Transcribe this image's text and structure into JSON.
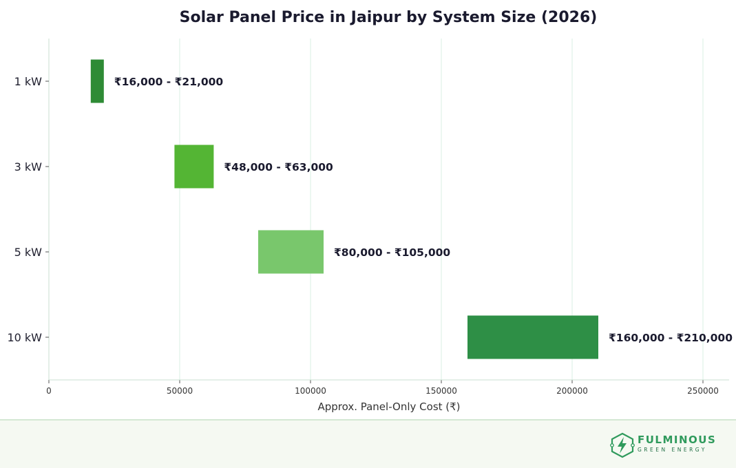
{
  "chart_data": {
    "type": "bar",
    "orientation": "horizontal-floating-range",
    "title": "Solar Panel Price in Jaipur by System Size (2026)",
    "xlabel": "Approx. Panel-Only Cost (₹)",
    "ylabel": "",
    "xlim": [
      0,
      260000
    ],
    "xticks": [
      0,
      50000,
      100000,
      150000,
      200000,
      250000
    ],
    "grid": "vertical",
    "categories": [
      "1 kW",
      "3 kW",
      "5 kW",
      "10 kW"
    ],
    "ranges": [
      {
        "low": 16000,
        "high": 21000,
        "label": "₹16,000 - ₹21,000",
        "color": "#2e8b35"
      },
      {
        "low": 48000,
        "high": 63000,
        "label": "₹48,000 - ₹63,000",
        "color": "#54b534"
      },
      {
        "low": 80000,
        "high": 105000,
        "label": "₹80,000 - ₹105,000",
        "color": "#79c76c"
      },
      {
        "low": 160000,
        "high": 210000,
        "label": "₹160,000 - ₹210,000",
        "color": "#2e8f46"
      }
    ]
  },
  "footer": {
    "logo": {
      "name": "FULMINOUS",
      "tagline": "GREEN ENERGY"
    }
  },
  "colors": {
    "grid": "#d8efe3",
    "axis": "#c9dfd2",
    "brand": "#2f9a5c"
  }
}
